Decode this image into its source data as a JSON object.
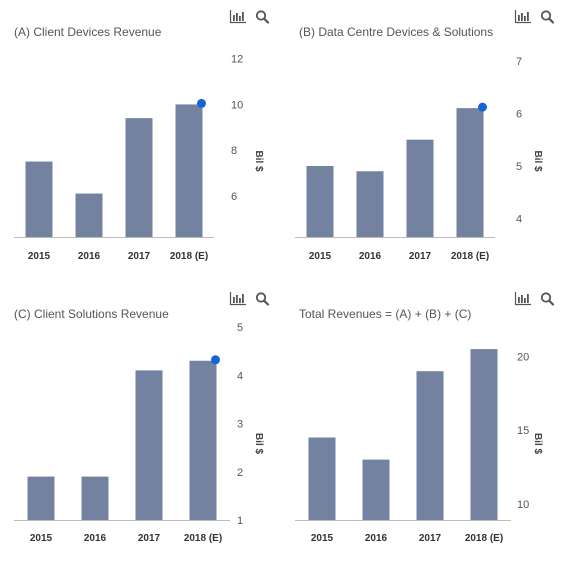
{
  "colors": {
    "bar": "#7382a0",
    "highlight": "#1565d8",
    "axis": "#bbbbbb",
    "icon": "#555555"
  },
  "toolbar": {
    "chart_icon": "bar-chart-icon",
    "zoom_icon": "search-icon"
  },
  "chart_data": [
    {
      "type": "bar",
      "title": "(A) Client Devices Revenue",
      "categories": [
        "2015",
        "2016",
        "2017",
        "2018 (E)"
      ],
      "values": [
        7.5,
        6.1,
        9.4,
        10.0
      ],
      "highlight_index": 3,
      "ylabel": "Bil $",
      "yticks": [
        "6",
        "8",
        "10",
        "12"
      ],
      "ylim": [
        4.2,
        12.6
      ],
      "grid": false,
      "axis_side": "right"
    },
    {
      "type": "bar",
      "title": "(B) Data Centre Devices & Solutions",
      "categories": [
        "2015",
        "2016",
        "2017",
        "2018 (E)"
      ],
      "values": [
        5.0,
        4.9,
        5.5,
        6.1
      ],
      "highlight_index": 3,
      "ylabel": "Bil $",
      "yticks": [
        "4",
        "5",
        "6",
        "7"
      ],
      "ylim": [
        3.65,
        7.3
      ],
      "grid": false,
      "axis_side": "right"
    },
    {
      "type": "bar",
      "title": "(C) Client Solutions Revenue",
      "categories": [
        "2015",
        "2016",
        "2017",
        "2018 (E)"
      ],
      "values": [
        1.9,
        1.9,
        4.1,
        4.3
      ],
      "highlight_index": 3,
      "ylabel": "Bil $",
      "yticks": [
        "1",
        "2",
        "3",
        "4",
        "5"
      ],
      "ylim": [
        1.0,
        5.0
      ],
      "grid": false,
      "axis_side": "right"
    },
    {
      "type": "bar",
      "title": "Total Revenues = (A) + (B) + (C)",
      "categories": [
        "2015",
        "2016",
        "2017",
        "2018 (E)"
      ],
      "values": [
        14.5,
        13.0,
        19.0,
        20.5
      ],
      "highlight_index": null,
      "ylabel": "Bil $",
      "yticks": [
        "10",
        "15",
        "20"
      ],
      "ylim": [
        8.9,
        22.0
      ],
      "grid": false,
      "axis_side": "right"
    }
  ]
}
